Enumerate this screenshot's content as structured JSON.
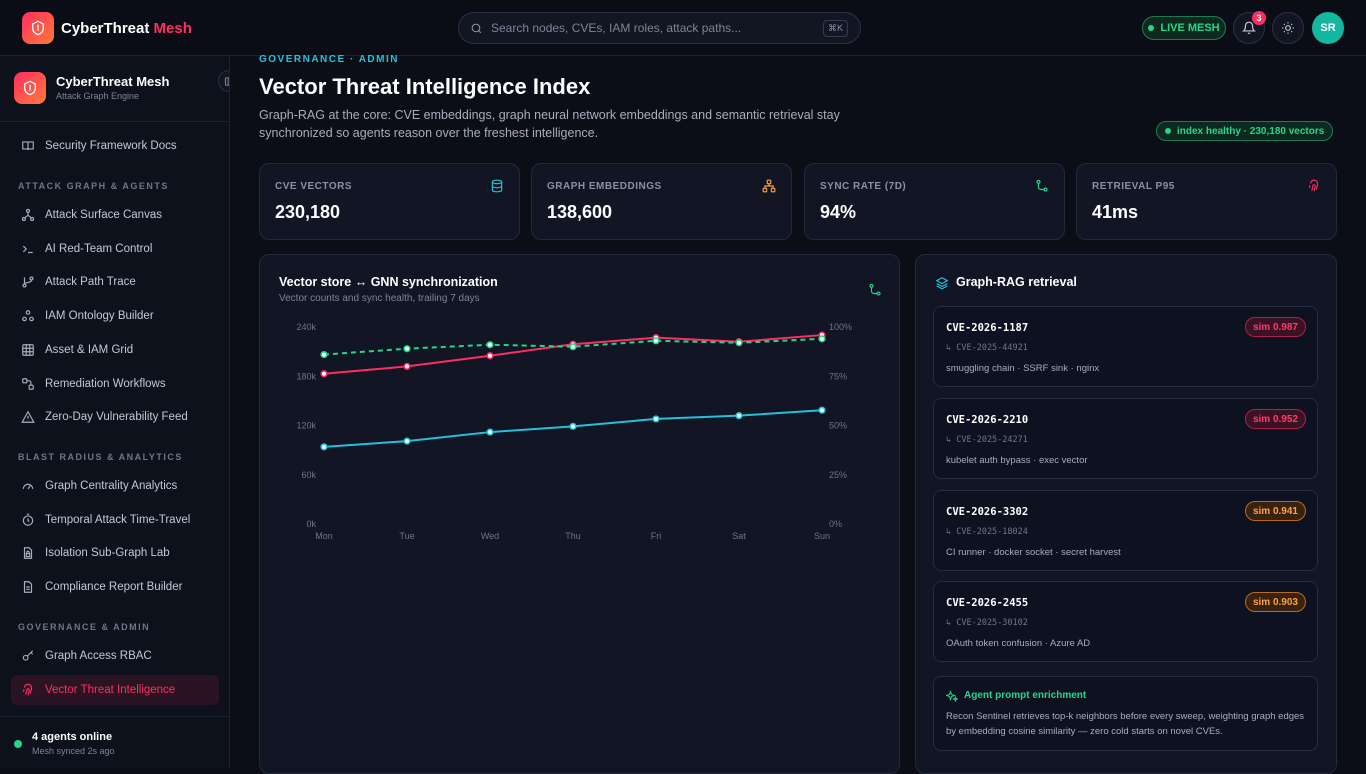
{
  "topbar": {
    "brand_main": "CyberThreat",
    "brand_accent": "Mesh",
    "search_placeholder": "Search nodes, CVEs, IAM roles, attack paths...",
    "search_shortcut": "⌘K",
    "live_label": "LIVE MESH",
    "notification_count": "3",
    "avatar_initials": "SR"
  },
  "sidebar": {
    "title": "CyberThreat Mesh",
    "subtitle": "Attack Graph Engine",
    "docs_item": "Security Framework Docs",
    "sections": [
      {
        "label": "ATTACK GRAPH & AGENTS",
        "items": [
          "Attack Surface Canvas",
          "AI Red-Team Control",
          "Attack Path Trace",
          "IAM Ontology Builder",
          "Asset & IAM Grid",
          "Remediation Workflows",
          "Zero-Day Vulnerability Feed"
        ]
      },
      {
        "label": "BLAST RADIUS & ANALYTICS",
        "items": [
          "Graph Centrality Analytics",
          "Temporal Attack Time-Travel",
          "Isolation Sub-Graph Lab",
          "Compliance Report Builder"
        ]
      },
      {
        "label": "GOVERNANCE & ADMIN",
        "items": [
          "Graph Access RBAC",
          "Vector Threat Intelligence"
        ]
      }
    ],
    "footer_status": "4 agents online",
    "footer_sync": "Mesh synced 2s ago"
  },
  "page": {
    "breadcrumb": "GOVERNANCE · ADMIN",
    "title": "Vector Threat Intelligence Index",
    "description": "Graph-RAG at the core: CVE embeddings, graph neural network embeddings and semantic retrieval stay synchronized so agents reason over the freshest intelligence.",
    "health_badge": "index healthy · 230,180 vectors"
  },
  "kpis": [
    {
      "label": "CVE VECTORS",
      "value": "230,180",
      "icon": "database-icon",
      "color": "#22c3d9"
    },
    {
      "label": "GRAPH EMBEDDINGS",
      "value": "138,600",
      "icon": "network-icon",
      "color": "#ffa244"
    },
    {
      "label": "SYNC RATE (7D)",
      "value": "94%",
      "icon": "git-merge-icon",
      "color": "#24d68a"
    },
    {
      "label": "RETRIEVAL P95",
      "value": "41ms",
      "icon": "fingerprint-icon",
      "color": "#ff2d63"
    }
  ],
  "chart_panel": {
    "title": "Vector store ↔ GNN synchronization",
    "subtitle": "Vector counts and sync health, trailing 7 days"
  },
  "chart_data": {
    "type": "line",
    "x": [
      "Mon",
      "Tue",
      "Wed",
      "Thu",
      "Fri",
      "Sat",
      "Sun"
    ],
    "y_left_ticks": [
      "0k",
      "60k",
      "120k",
      "180k",
      "240k"
    ],
    "y_left_range": [
      0,
      240000
    ],
    "y_right_ticks": [
      "0%",
      "25%",
      "50%",
      "75%",
      "100%"
    ],
    "y_right_range": [
      0,
      100
    ],
    "grid": false,
    "series": [
      {
        "axis": "left",
        "color": "#ff2d63",
        "dashed": false,
        "values": [
          183000,
          192000,
          205000,
          219000,
          227000,
          222000,
          230180
        ]
      },
      {
        "axis": "left",
        "color": "#22c3d9",
        "dashed": false,
        "values": [
          94000,
          101000,
          112000,
          119000,
          128000,
          132000,
          138600
        ]
      },
      {
        "axis": "right",
        "color": "#24d68a",
        "dashed": true,
        "values": [
          86,
          89,
          91,
          90,
          93,
          92,
          94
        ]
      }
    ]
  },
  "rag_panel": {
    "title": "Graph-RAG retrieval",
    "results": [
      {
        "id": "CVE-2026-1187",
        "alias": "↳ CVE-2025-44921",
        "tags": "smuggling chain · SSRF sink · nginx",
        "sim": "sim 0.987",
        "tone": "red"
      },
      {
        "id": "CVE-2026-2210",
        "alias": "↳ CVE-2025-24271",
        "tags": "kubelet auth bypass · exec vector",
        "sim": "sim 0.952",
        "tone": "red"
      },
      {
        "id": "CVE-2026-3302",
        "alias": "↳ CVE-2025-18024",
        "tags": "CI runner · docker socket · secret harvest",
        "sim": "sim 0.941",
        "tone": "orange"
      },
      {
        "id": "CVE-2026-2455",
        "alias": "↳ CVE-2025-30102",
        "tags": "OAuth token confusion · Azure AD",
        "sim": "sim 0.903",
        "tone": "orange"
      }
    ],
    "enrich_title": "Agent prompt enrichment",
    "enrich_body": "Recon Sentinel retrieves top-k neighbors before every sweep, weighting graph edges by embedding cosine similarity — zero cold starts on novel CVEs."
  }
}
